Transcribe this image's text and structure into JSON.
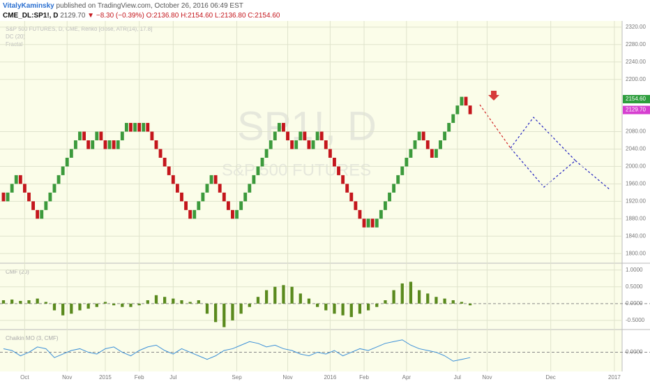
{
  "header": {
    "author": "VitalyKaminsky",
    "published": "published on TradingView.com, October 26, 2016 06:49 EST",
    "symbol": "CME_DL:SP1!, D",
    "last": "2129.70",
    "change": "▼ −8.30 (−0.39%)",
    "ohlc": [
      "O:2136.80",
      "H:2154.60",
      "L:2136.80",
      "C:2154.60"
    ]
  },
  "chart_data": [
    {
      "type": "renko",
      "title": "S&P 500 FUTURES, D, CME, Renko [close, ATR(14), 17.8]",
      "legend": [
        "DC (20)",
        "Fractal"
      ],
      "watermark": "SP1!, D",
      "watermark_sub": "S&P 500 FUTURES",
      "open": 1940,
      "values": [
        1920,
        1940,
        1960,
        1980,
        1960,
        1940,
        1920,
        1900,
        1880,
        1900,
        1920,
        1940,
        1960,
        1980,
        2000,
        2020,
        2040,
        2060,
        2080,
        2060,
        2040,
        2060,
        2080,
        2060,
        2040,
        2060,
        2040,
        2060,
        2080,
        2100,
        2080,
        2100,
        2080,
        2100,
        2080,
        2060,
        2040,
        2020,
        2000,
        1980,
        1960,
        1940,
        1920,
        1900,
        1880,
        1900,
        1920,
        1940,
        1960,
        1980,
        1960,
        1940,
        1920,
        1900,
        1880,
        1900,
        1920,
        1940,
        1960,
        1980,
        2000,
        2020,
        2040,
        2060,
        2080,
        2100,
        2080,
        2060,
        2040,
        2060,
        2080,
        2060,
        2040,
        2060,
        2080,
        2060,
        2040,
        2020,
        2000,
        1980,
        1960,
        1940,
        1920,
        1900,
        1880,
        1860,
        1880,
        1860,
        1880,
        1900,
        1920,
        1940,
        1960,
        1980,
        2000,
        2020,
        2040,
        2060,
        2080,
        2060,
        2040,
        2020,
        2040,
        2060,
        2080,
        2100,
        2120,
        2140,
        2160,
        2140,
        2120
      ],
      "up_color": "#3c9a3c",
      "down_color": "#c4161c",
      "xlim": [
        0,
        145
      ],
      "xticks": [
        {
          "value": 5,
          "label": "Oct"
        },
        {
          "value": 15,
          "label": "Nov"
        },
        {
          "value": 24,
          "label": "2015"
        },
        {
          "value": 32,
          "label": "Feb"
        },
        {
          "value": 40,
          "label": "Jul"
        },
        {
          "value": 55,
          "label": "Sep"
        },
        {
          "value": 67,
          "label": "Nov"
        },
        {
          "value": 77,
          "label": "2016"
        },
        {
          "value": 85,
          "label": "Feb"
        },
        {
          "value": 95,
          "label": "Apr"
        },
        {
          "value": 107,
          "label": "Jul"
        },
        {
          "value": 114,
          "label": "Nov"
        },
        {
          "value": 129,
          "label": "Dec"
        },
        {
          "value": 144,
          "label": "2017"
        }
      ],
      "ylim": [
        1781,
        2331
      ],
      "yticks": [
        {
          "value": 1800,
          "label": "1800.00"
        },
        {
          "value": 1840,
          "label": "1840.00"
        },
        {
          "value": 1880,
          "label": "1880.00"
        },
        {
          "value": 1920,
          "label": "1920.00"
        },
        {
          "value": 1960,
          "label": "1960.00"
        },
        {
          "value": 2000,
          "label": "2000.00"
        },
        {
          "value": 2040,
          "label": "2040.00"
        },
        {
          "value": 2080,
          "label": "2080.00"
        },
        {
          "value": 2200,
          "label": "2200.00"
        },
        {
          "value": 2240,
          "label": "2240.00"
        },
        {
          "value": 2280,
          "label": "2280.00"
        },
        {
          "value": 2320,
          "label": "2320.00"
        }
      ],
      "price_tags": [
        {
          "value": 2154.6,
          "label": "2154.60",
          "color": "#2e9e3e"
        },
        {
          "value": 2129.7,
          "label": "2129.70",
          "color": "#d63fd0"
        }
      ],
      "grid": true
    },
    {
      "type": "bar",
      "title": "CMF (20)",
      "color": "#5a8a1e",
      "xlim": [
        0,
        72.5
      ],
      "values": [
        0.1,
        0.12,
        0.08,
        0.1,
        0.15,
        0.05,
        -0.2,
        -0.35,
        -0.3,
        -0.2,
        -0.15,
        -0.1,
        0.05,
        -0.05,
        -0.1,
        -0.1,
        -0.05,
        0.1,
        0.25,
        0.2,
        0.15,
        0.1,
        0.05,
        0.1,
        -0.3,
        -0.55,
        -0.7,
        -0.5,
        -0.3,
        -0.1,
        0.2,
        0.4,
        0.5,
        0.55,
        0.5,
        0.3,
        0.15,
        -0.1,
        -0.2,
        -0.3,
        -0.35,
        -0.4,
        -0.3,
        -0.2,
        -0.1,
        0.1,
        0.4,
        0.6,
        0.65,
        0.4,
        0.3,
        0.2,
        0.15,
        0.1,
        0.05,
        -0.05
      ],
      "ylim": [
        -0.73,
        1.16
      ],
      "yticks": [
        {
          "value": -0.5,
          "label": "-0.5000"
        },
        {
          "value": 0,
          "label": "0.0000"
        },
        {
          "value": 0.5,
          "label": "0.5000"
        },
        {
          "value": 1,
          "label": "1.0000"
        }
      ]
    },
    {
      "type": "line",
      "title": "Chaikin MO (3, CMF)",
      "color": "#3a8fd8",
      "xlim": [
        0,
        72.5
      ],
      "values": [
        0.1,
        0.05,
        -0.1,
        0.0,
        0.15,
        0.1,
        -0.15,
        -0.05,
        0.05,
        0.1,
        0.0,
        -0.05,
        0.1,
        0.15,
        0.0,
        -0.1,
        0.05,
        0.15,
        0.2,
        0.05,
        -0.05,
        0.1,
        0.0,
        -0.1,
        -0.2,
        -0.1,
        0.05,
        0.1,
        0.2,
        0.3,
        0.25,
        0.15,
        0.2,
        0.1,
        0.05,
        -0.05,
        -0.1,
        0.0,
        -0.05,
        0.05,
        -0.1,
        0.0,
        0.1,
        0.05,
        0.15,
        0.25,
        0.3,
        0.35,
        0.2,
        0.1,
        0.05,
        0.0,
        -0.1,
        -0.25,
        -0.2,
        -0.15
      ],
      "ylim": [
        -0.5,
        0.6
      ],
      "yticks": [
        {
          "value": 0,
          "label": "0.0000"
        }
      ]
    }
  ]
}
